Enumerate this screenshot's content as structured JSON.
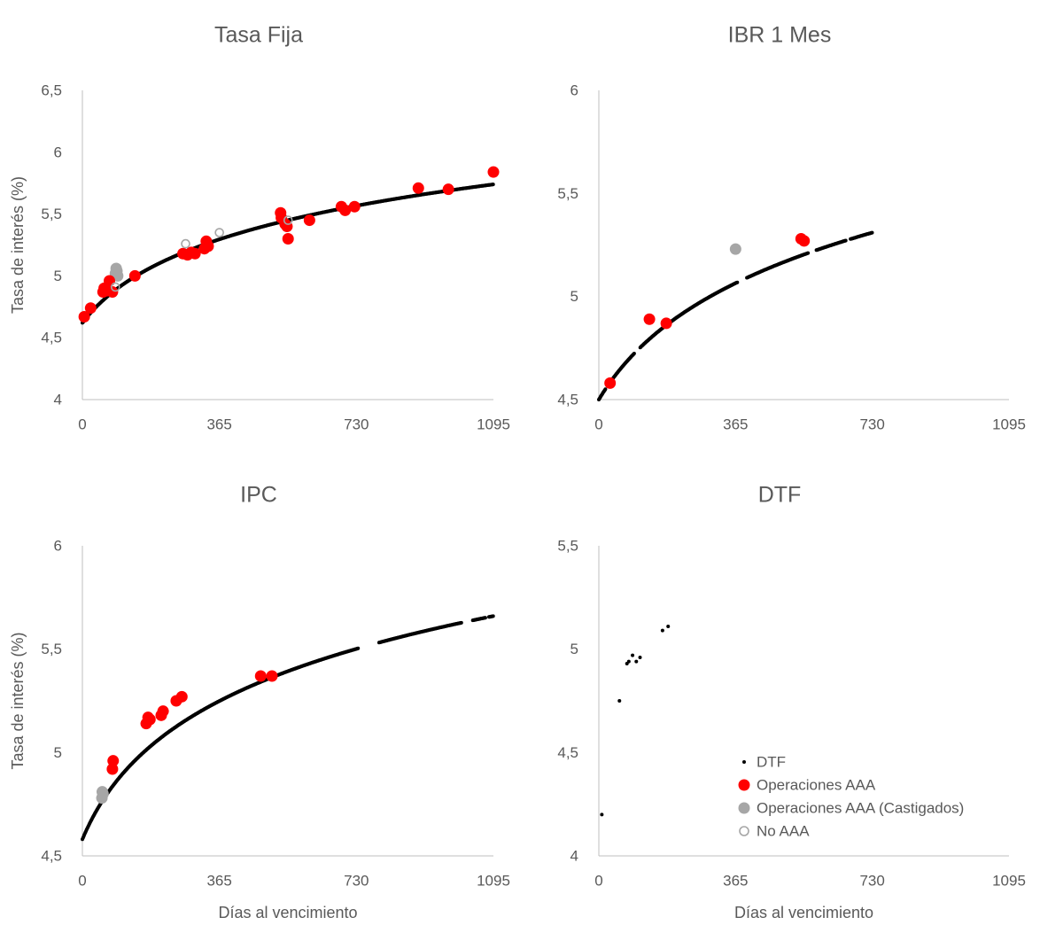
{
  "chart_data": [
    {
      "type": "scatter",
      "title": "Tasa Fija",
      "ylabel": "Tasa de interés (%)",
      "xlabel": "",
      "xlim": [
        0,
        1095
      ],
      "ylim": [
        4,
        6.5
      ],
      "xticks": [
        "0",
        "365",
        "730",
        "1095"
      ],
      "yticks": [
        "4",
        "4,5",
        "5",
        "5,5",
        "6",
        "6,5"
      ],
      "curve": {
        "kind": "log",
        "x_range": [
          0,
          1095
        ],
        "y_start": 4.62,
        "y_end": 5.74,
        "k": 120,
        "gaps": []
      },
      "series": [
        {
          "name": "Operaciones AAA",
          "points": [
            [
              5,
              4.67
            ],
            [
              22,
              4.74
            ],
            [
              55,
              4.87
            ],
            [
              58,
              4.9
            ],
            [
              65,
              4.88
            ],
            [
              72,
              4.96
            ],
            [
              80,
              4.87
            ],
            [
              140,
              5.0
            ],
            [
              268,
              5.18
            ],
            [
              280,
              5.17
            ],
            [
              290,
              5.19
            ],
            [
              300,
              5.18
            ],
            [
              325,
              5.22
            ],
            [
              330,
              5.28
            ],
            [
              335,
              5.24
            ],
            [
              528,
              5.51
            ],
            [
              530,
              5.47
            ],
            [
              540,
              5.42
            ],
            [
              545,
              5.4
            ],
            [
              548,
              5.3
            ],
            [
              605,
              5.45
            ],
            [
              690,
              5.56
            ],
            [
              700,
              5.53
            ],
            [
              725,
              5.56
            ],
            [
              895,
              5.71
            ],
            [
              975,
              5.7
            ],
            [
              1095,
              5.84
            ]
          ]
        },
        {
          "name": "Operaciones AAA (Castigados)",
          "points": [
            [
              88,
              5.02
            ],
            [
              90,
              5.06
            ],
            [
              92,
              5.04
            ],
            [
              94,
              5.0
            ]
          ]
        },
        {
          "name": "No AAA",
          "points": [
            [
              88,
              4.91
            ],
            [
              275,
              5.26
            ],
            [
              365,
              5.35
            ],
            [
              548,
              5.45
            ]
          ]
        }
      ]
    },
    {
      "type": "scatter",
      "title": "IBR 1 Mes",
      "ylabel": "",
      "xlabel": "",
      "xlim": [
        0,
        1095
      ],
      "ylim": [
        4.5,
        6
      ],
      "xticks": [
        "0",
        "365",
        "730",
        "1095"
      ],
      "yticks": [
        "4,5",
        "5",
        "5,5",
        "6"
      ],
      "curve": {
        "kind": "log",
        "x_range": [
          0,
          730
        ],
        "y_start": 4.5,
        "y_end": 5.31,
        "k": 150,
        "gaps": [
          [
            18,
            32
          ],
          [
            95,
            110
          ],
          [
            370,
            395
          ],
          [
            560,
            580
          ],
          [
            660,
            672
          ]
        ]
      },
      "series": [
        {
          "name": "Operaciones AAA",
          "points": [
            [
              30,
              4.58
            ],
            [
              135,
              4.89
            ],
            [
              180,
              4.87
            ],
            [
              540,
              5.28
            ],
            [
              548,
              5.27
            ]
          ]
        },
        {
          "name": "Operaciones AAA (Castigados)",
          "points": [
            [
              365,
              5.23
            ]
          ]
        },
        {
          "name": "No AAA",
          "points": []
        }
      ]
    },
    {
      "type": "scatter",
      "title": "IPC",
      "ylabel": "Tasa de interés (%)",
      "xlabel": "Días al vencimiento",
      "xlim": [
        0,
        1095
      ],
      "ylim": [
        4.5,
        6
      ],
      "xticks": [
        "0",
        "365",
        "730",
        "1095"
      ],
      "yticks": [
        "4,5",
        "5",
        "5,5",
        "6"
      ],
      "curve": {
        "kind": "log",
        "x_range": [
          0,
          1095
        ],
        "y_start": 4.58,
        "y_end": 5.66,
        "k": 100,
        "gaps": [
          [
            735,
            790
          ],
          [
            1010,
            1040
          ],
          [
            1075,
            1082
          ]
        ]
      },
      "series": [
        {
          "name": "Operaciones AAA",
          "points": [
            [
              80,
              4.92
            ],
            [
              82,
              4.96
            ],
            [
              170,
              5.14
            ],
            [
              175,
              5.17
            ],
            [
              180,
              5.16
            ],
            [
              210,
              5.18
            ],
            [
              215,
              5.2
            ],
            [
              250,
              5.25
            ],
            [
              265,
              5.27
            ],
            [
              475,
              5.37
            ],
            [
              505,
              5.37
            ]
          ]
        },
        {
          "name": "Operaciones AAA (Castigados)",
          "points": [
            [
              52,
              4.78
            ],
            [
              53,
              4.81
            ],
            [
              55,
              4.8
            ]
          ]
        },
        {
          "name": "No AAA",
          "points": []
        }
      ]
    },
    {
      "type": "scatter",
      "title": "DTF",
      "ylabel": "",
      "xlabel": "Días al vencimiento",
      "xlim": [
        0,
        1095
      ],
      "ylim": [
        4,
        5.5
      ],
      "xticks": [
        "0",
        "365",
        "730",
        "1095"
      ],
      "yticks": [
        "4",
        "4,5",
        "5",
        "5,5"
      ],
      "series": [
        {
          "name": "DTF",
          "points": [
            [
              8,
              4.2
            ],
            [
              55,
              4.75
            ],
            [
              75,
              4.93
            ],
            [
              80,
              4.94
            ],
            [
              90,
              4.97
            ],
            [
              100,
              4.94
            ],
            [
              110,
              4.96
            ],
            [
              170,
              5.09
            ],
            [
              185,
              5.11
            ]
          ]
        },
        {
          "name": "Operaciones AAA",
          "points": []
        },
        {
          "name": "Operaciones AAA (Castigados)",
          "points": []
        },
        {
          "name": "No AAA",
          "points": []
        }
      ],
      "legend": {
        "position": "bottom-right",
        "entries": [
          "DTF",
          "Operaciones AAA",
          "Operaciones AAA (Castigados)",
          "No AAA"
        ]
      }
    }
  ],
  "colors": {
    "dtf": "#000000",
    "aaa": "#ff0000",
    "castigados": "#a6a6a6",
    "no_aaa": "#a6a6a6",
    "axis": "#bfbfbf",
    "text": "#595959"
  }
}
